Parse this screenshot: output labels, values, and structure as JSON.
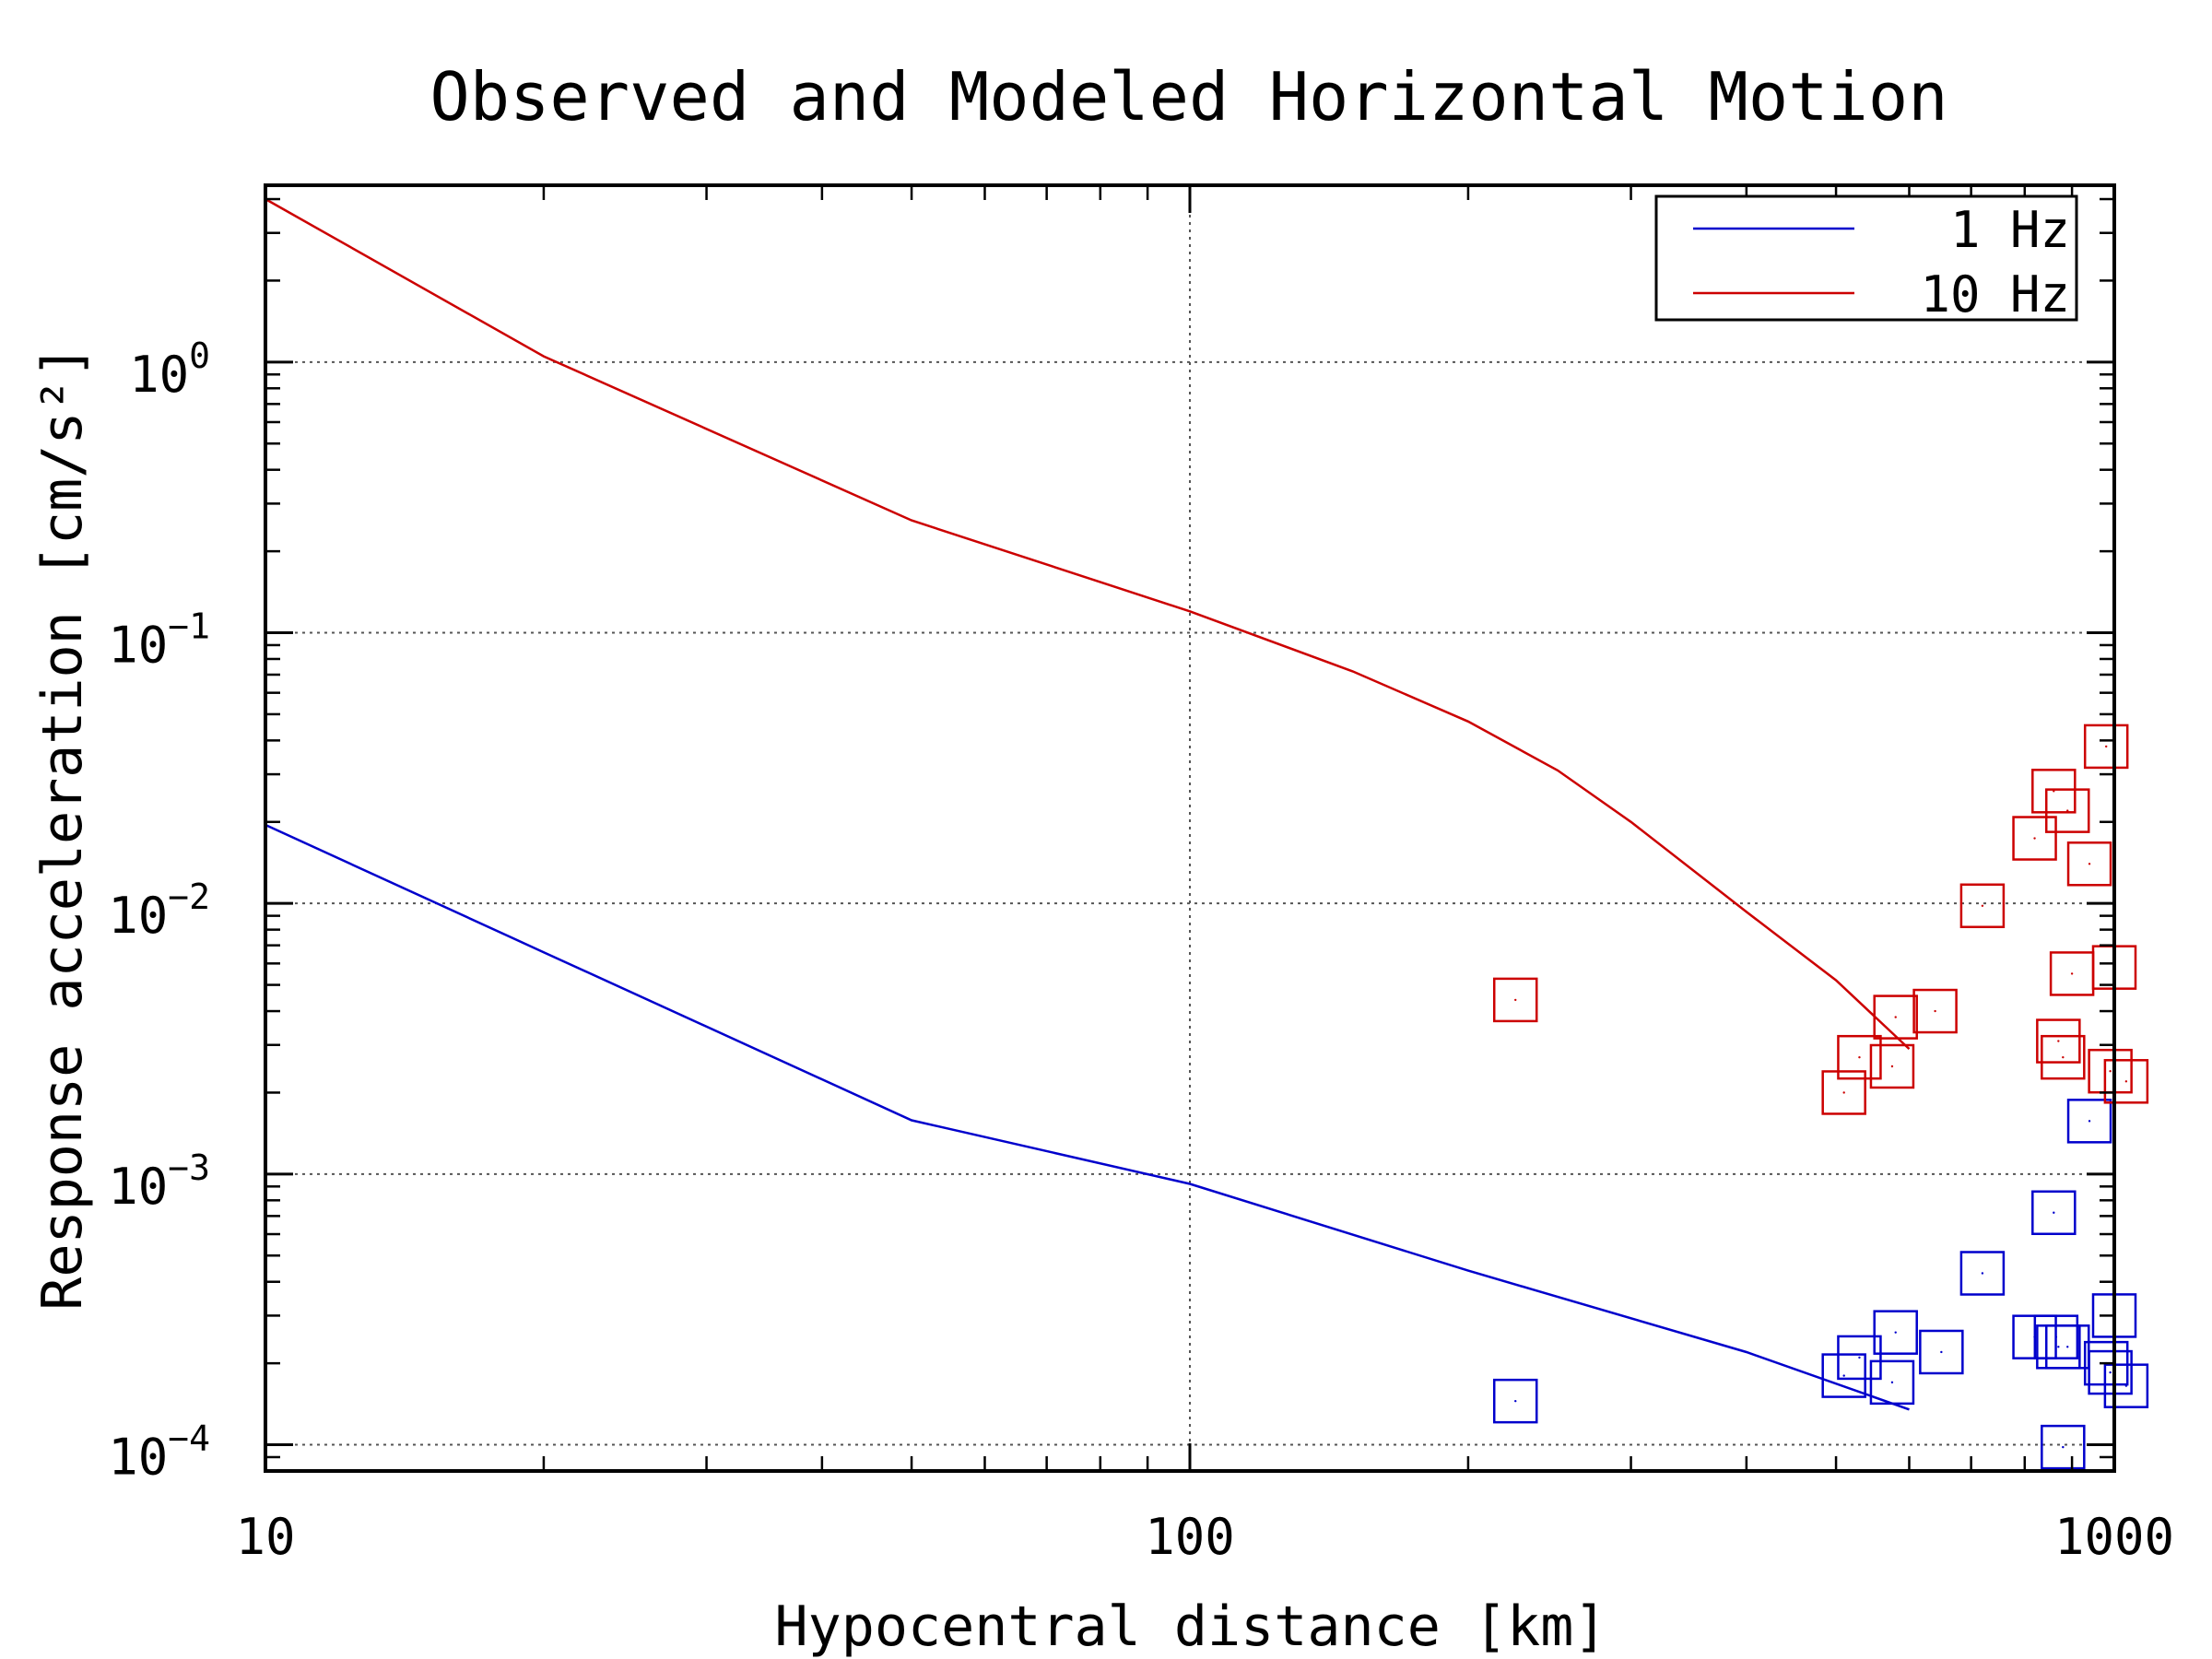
{
  "chart_data": {
    "type": "line+scatter",
    "title": "Observed and Modeled Horizontal Motion",
    "xlabel": "Hypocentral distance [km]",
    "ylabel": "Response acceleration [cm/s²]",
    "xscale": "log",
    "yscale": "log",
    "xlim": [
      10,
      1000
    ],
    "ylim": [
      8e-05,
      4.5
    ],
    "grid": true,
    "legend_position": "top-right",
    "x_ticks": [
      {
        "value": 10,
        "label": "10"
      },
      {
        "value": 100,
        "label": "100"
      },
      {
        "value": 1000,
        "label": "1000"
      }
    ],
    "y_ticks": [
      {
        "value": 1,
        "base": "10",
        "exp": "0"
      },
      {
        "value": 0.1,
        "base": "10",
        "exp": "−1"
      },
      {
        "value": 0.01,
        "base": "10",
        "exp": "−2"
      },
      {
        "value": 0.001,
        "base": "10",
        "exp": "−3"
      },
      {
        "value": 0.0001,
        "base": "10",
        "exp": "−4"
      }
    ],
    "series": [
      {
        "name": "1 Hz",
        "color": "#0000cc",
        "model": [
          [
            10,
            0.0195
          ],
          [
            20,
            0.0066
          ],
          [
            50,
            0.00158
          ],
          [
            100,
            0.00092
          ],
          [
            200,
            0.00044
          ],
          [
            400,
            0.00022
          ],
          [
            600,
            0.000135
          ]
        ],
        "observed": [
          [
            225,
            0.000145
          ],
          [
            510,
            0.00018
          ],
          [
            530,
            0.00021
          ],
          [
            575,
            0.00017
          ],
          [
            580,
            0.00026
          ],
          [
            650,
            0.00022
          ],
          [
            720,
            0.00043
          ],
          [
            820,
            0.00025
          ],
          [
            860,
            0.00072
          ],
          [
            865,
            0.00025
          ],
          [
            870,
            0.00023
          ],
          [
            880,
            9.8e-05
          ],
          [
            890,
            0.00023
          ],
          [
            940,
            0.00157
          ],
          [
            980,
            0.0002
          ],
          [
            990,
            0.000185
          ],
          [
            1000,
            0.0003
          ],
          [
            1030,
            0.000165
          ]
        ]
      },
      {
        "name": "10 Hz",
        "color": "#cc0000",
        "model": [
          [
            10,
            4.0
          ],
          [
            20,
            1.05
          ],
          [
            50,
            0.26
          ],
          [
            100,
            0.12
          ],
          [
            150,
            0.072
          ],
          [
            200,
            0.047
          ],
          [
            250,
            0.031
          ],
          [
            300,
            0.02
          ],
          [
            400,
            0.0093
          ],
          [
            500,
            0.0052
          ],
          [
            600,
            0.0029
          ]
        ],
        "observed": [
          [
            225,
            0.0044
          ],
          [
            510,
            0.002
          ],
          [
            530,
            0.0027
          ],
          [
            575,
            0.0025
          ],
          [
            580,
            0.0038
          ],
          [
            640,
            0.004
          ],
          [
            720,
            0.0098
          ],
          [
            820,
            0.0174
          ],
          [
            860,
            0.026
          ],
          [
            870,
            0.0031
          ],
          [
            880,
            0.0027
          ],
          [
            890,
            0.022
          ],
          [
            900,
            0.0055
          ],
          [
            940,
            0.014
          ],
          [
            980,
            0.038
          ],
          [
            990,
            0.0024
          ],
          [
            1000,
            0.0058
          ],
          [
            1030,
            0.0022
          ]
        ]
      }
    ]
  }
}
